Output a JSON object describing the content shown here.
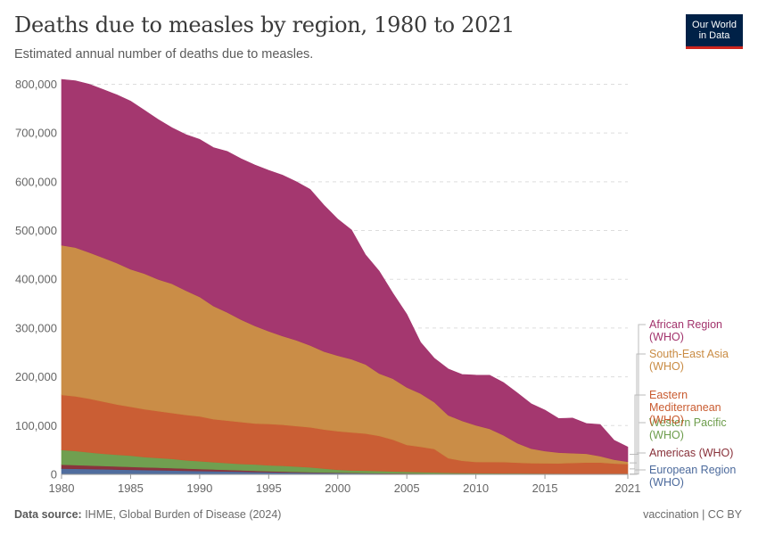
{
  "header": {
    "title": "Deaths due to measles by region, 1980 to 2021",
    "subtitle": "Estimated annual number of deaths due to measles."
  },
  "logo": {
    "line1": "Our World",
    "line2": "in Data"
  },
  "footer": {
    "source_label": "Data source:",
    "source_text": " IHME, Global Burden of Disease (2024)",
    "right_text": "vaccination | CC BY"
  },
  "chart_data": {
    "type": "area",
    "stacked": true,
    "x": [
      1980,
      1981,
      1982,
      1983,
      1984,
      1985,
      1986,
      1987,
      1988,
      1989,
      1990,
      1991,
      1992,
      1993,
      1994,
      1995,
      1996,
      1997,
      1998,
      1999,
      2000,
      2001,
      2002,
      2003,
      2004,
      2005,
      2006,
      2007,
      2008,
      2009,
      2010,
      2011,
      2012,
      2013,
      2014,
      2015,
      2016,
      2017,
      2018,
      2019,
      2020,
      2021
    ],
    "x_ticks": [
      1980,
      1985,
      1990,
      1995,
      2000,
      2005,
      2010,
      2015,
      2021
    ],
    "y_ticks": [
      0,
      100000,
      200000,
      300000,
      400000,
      500000,
      600000,
      700000,
      800000
    ],
    "y_tick_labels": [
      "0",
      "100,000",
      "200,000",
      "300,000",
      "400,000",
      "500,000",
      "600,000",
      "700,000",
      "800,000"
    ],
    "ylim": [
      0,
      810000
    ],
    "xlim": [
      1980,
      2021
    ],
    "series": [
      {
        "name": "European Region (WHO)",
        "color": "#4c6a9c",
        "values": [
          12000,
          11500,
          11000,
          10500,
          10000,
          9500,
          9000,
          8500,
          8000,
          7500,
          7000,
          6500,
          6000,
          5500,
          5000,
          4500,
          4000,
          3700,
          3400,
          3100,
          2800,
          2500,
          2200,
          2000,
          1800,
          1600,
          1400,
          1200,
          1000,
          900,
          800,
          750,
          700,
          650,
          600,
          550,
          500,
          450,
          400,
          350,
          300,
          300
        ]
      },
      {
        "name": "Americas (WHO)",
        "color": "#883039",
        "values": [
          8000,
          7600,
          7200,
          6800,
          6400,
          6000,
          5600,
          5200,
          4800,
          4400,
          4000,
          3600,
          3200,
          2800,
          2400,
          2000,
          1700,
          1400,
          1100,
          900,
          700,
          600,
          500,
          400,
          350,
          300,
          250,
          200,
          180,
          160,
          140,
          130,
          120,
          110,
          100,
          90,
          90,
          80,
          80,
          70,
          60,
          60
        ]
      },
      {
        "name": "Western Pacific (WHO)",
        "color": "#6d9d4c",
        "values": [
          30000,
          29000,
          27000,
          25000,
          24000,
          23000,
          21000,
          20000,
          19000,
          17000,
          16000,
          15000,
          14000,
          13000,
          13000,
          12000,
          12000,
          11000,
          10000,
          8000,
          6000,
          5000,
          5000,
          4500,
          4000,
          3500,
          3000,
          2500,
          2000,
          1800,
          1600,
          1500,
          1400,
          1300,
          1200,
          1100,
          1000,
          950,
          900,
          850,
          800,
          750
        ]
      },
      {
        "name": "Eastern Mediterranean (WHO)",
        "color": "#c95b30",
        "values": [
          113000,
          112000,
          110000,
          107000,
          103000,
          100000,
          98000,
          96000,
          94000,
          93000,
          92000,
          88000,
          87000,
          86000,
          84000,
          85000,
          84000,
          83000,
          82000,
          80000,
          79000,
          78000,
          76000,
          72000,
          65000,
          55000,
          52000,
          48000,
          30000,
          25000,
          23000,
          23000,
          23000,
          22000,
          21000,
          21000,
          21000,
          22000,
          23000,
          23000,
          21000,
          20000
        ]
      },
      {
        "name": "South-East Asia (WHO)",
        "color": "#c98b43",
        "values": [
          307000,
          305000,
          300000,
          295000,
          290000,
          282000,
          278000,
          270000,
          265000,
          255000,
          245000,
          232000,
          222000,
          210000,
          200000,
          190000,
          182000,
          176000,
          168000,
          160000,
          155000,
          150000,
          142000,
          128000,
          125000,
          118000,
          109000,
          96000,
          88000,
          82000,
          75000,
          68000,
          55000,
          40000,
          30000,
          25000,
          22000,
          20000,
          18000,
          13000,
          8000,
          5000
        ]
      },
      {
        "name": "African Region (WHO)",
        "color": "#a2336c",
        "values": [
          340000,
          342000,
          345000,
          345000,
          345000,
          345000,
          335000,
          328000,
          320000,
          320000,
          323000,
          325000,
          330000,
          330000,
          330000,
          330000,
          330000,
          325000,
          320000,
          300000,
          280000,
          265000,
          225000,
          210000,
          175000,
          150000,
          105000,
          90000,
          95000,
          95000,
          103000,
          110000,
          108000,
          103000,
          92000,
          84000,
          70000,
          72000,
          62000,
          65000,
          40000,
          30000
        ]
      }
    ]
  }
}
